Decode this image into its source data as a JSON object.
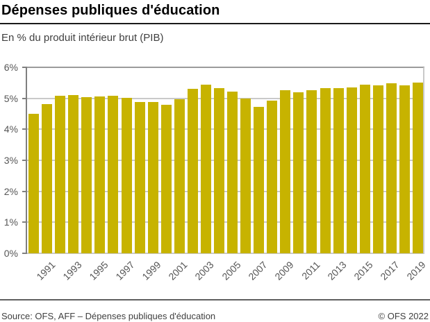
{
  "header": {
    "title": "Dépenses publiques d'éducation",
    "subtitle": "En % du produit intérieur brut (PIB)"
  },
  "footer": {
    "source": "Source: OFS, AFF – Dépenses publiques d'éducation",
    "copyright": "© OFS 2022"
  },
  "colors": {
    "bar": "#c7b300",
    "grid": "#c9c9c9",
    "axis": "#7f7f7f",
    "title_rule": "#1a1a1a",
    "footer_rule": "#5f5f5f",
    "tick_label": "#565656"
  },
  "chart_data": {
    "type": "bar",
    "title": "Dépenses publiques d'éducation",
    "ylabel": "En % du produit intérieur brut (PIB)",
    "ylim": [
      0,
      6
    ],
    "y_tick_step": 1,
    "y_tick_suffix": "%",
    "grid": true,
    "legend": "none",
    "categories": [
      1990,
      1991,
      1992,
      1993,
      1994,
      1995,
      1996,
      1997,
      1998,
      1999,
      2000,
      2001,
      2002,
      2003,
      2004,
      2005,
      2006,
      2007,
      2008,
      2009,
      2010,
      2011,
      2012,
      2013,
      2014,
      2015,
      2016,
      2017,
      2018,
      2019
    ],
    "values": [
      4.5,
      4.82,
      5.08,
      5.1,
      5.04,
      5.05,
      5.09,
      5.01,
      4.88,
      4.87,
      4.8,
      4.96,
      5.3,
      5.43,
      5.32,
      5.22,
      5.0,
      4.72,
      4.93,
      5.27,
      5.2,
      5.26,
      5.33,
      5.33,
      5.36,
      5.45,
      5.42,
      5.49,
      5.41,
      5.5
    ],
    "x_tick_labels": [
      "1991",
      "1993",
      "1995",
      "1997",
      "1999",
      "2001",
      "2003",
      "2005",
      "2007",
      "2009",
      "2011",
      "2013",
      "2015",
      "2017",
      "2019"
    ]
  }
}
